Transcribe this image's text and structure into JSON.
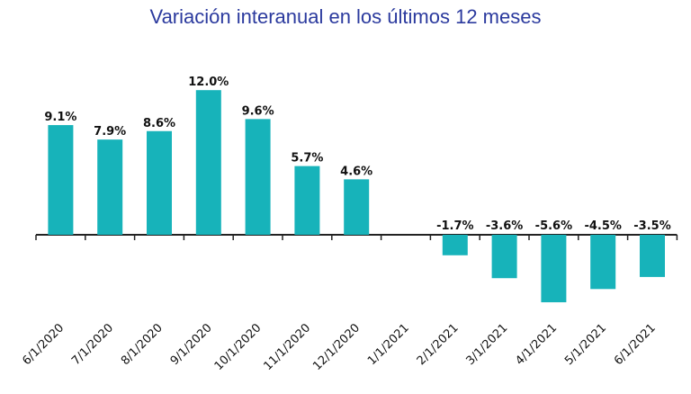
{
  "chart_data": {
    "type": "bar",
    "title": "Variación interanual en los últimos 12 meses",
    "categories": [
      "6/1/2020",
      "7/1/2020",
      "8/1/2020",
      "9/1/2020",
      "10/1/2020",
      "11/1/2020",
      "12/1/2020",
      "1/1/2021",
      "2/1/2021",
      "3/1/2021",
      "4/1/2021",
      "5/1/2021",
      "6/1/2021"
    ],
    "values": [
      9.1,
      7.9,
      8.6,
      12.0,
      9.6,
      5.7,
      4.6,
      null,
      -1.7,
      -3.6,
      -5.6,
      -4.5,
      -3.5
    ],
    "data_labels": [
      "9.1%",
      "7.9%",
      "8.6%",
      "12.0%",
      "9.6%",
      "5.7%",
      "4.6%",
      "",
      "-1.7%",
      "-3.6%",
      "-5.6%",
      "-4.5%",
      "-3.5%"
    ],
    "ylim": [
      -6.0,
      12.0
    ],
    "grid": false,
    "colors": {
      "bar": "#17b3ba",
      "axis": "#222222",
      "title": "#2b3a9e"
    }
  }
}
